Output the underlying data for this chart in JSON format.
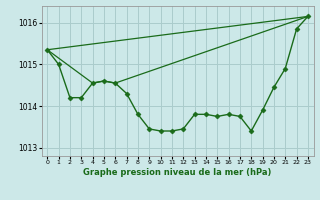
{
  "bg_color": "#cce8e8",
  "grid_color": "#aacccc",
  "line_color": "#1a6b1a",
  "xlabel": "Graphe pression niveau de la mer (hPa)",
  "xlim": [
    -0.5,
    23.5
  ],
  "ylim": [
    1012.8,
    1016.4
  ],
  "yticks": [
    1013,
    1014,
    1015,
    1016
  ],
  "xticks": [
    0,
    1,
    2,
    3,
    4,
    5,
    6,
    7,
    8,
    9,
    10,
    11,
    12,
    13,
    14,
    15,
    16,
    17,
    18,
    19,
    20,
    21,
    22,
    23
  ],
  "series": [
    {
      "x": [
        0,
        1,
        2,
        3,
        4,
        5,
        6,
        7,
        8,
        9,
        10,
        11,
        12,
        13,
        14,
        15,
        16,
        17,
        18,
        19,
        20,
        21,
        22,
        23
      ],
      "y": [
        1015.35,
        1015.0,
        1014.2,
        1014.2,
        1014.55,
        1014.6,
        1014.55,
        1014.3,
        1013.8,
        1013.45,
        1013.4,
        1013.4,
        1013.45,
        1013.8,
        1013.8,
        1013.75,
        1013.8,
        1013.75,
        1013.4,
        1013.9,
        1014.45,
        1014.9,
        1015.85,
        1016.15
      ],
      "marker": "D",
      "markersize": 2.5,
      "linewidth": 1.0
    },
    {
      "x": [
        0,
        4,
        5,
        6,
        23
      ],
      "y": [
        1015.35,
        1014.55,
        1014.6,
        1014.55,
        1016.15
      ],
      "marker": null,
      "linewidth": 0.9
    },
    {
      "x": [
        0,
        23
      ],
      "y": [
        1015.35,
        1016.15
      ],
      "marker": null,
      "linewidth": 0.9
    }
  ]
}
